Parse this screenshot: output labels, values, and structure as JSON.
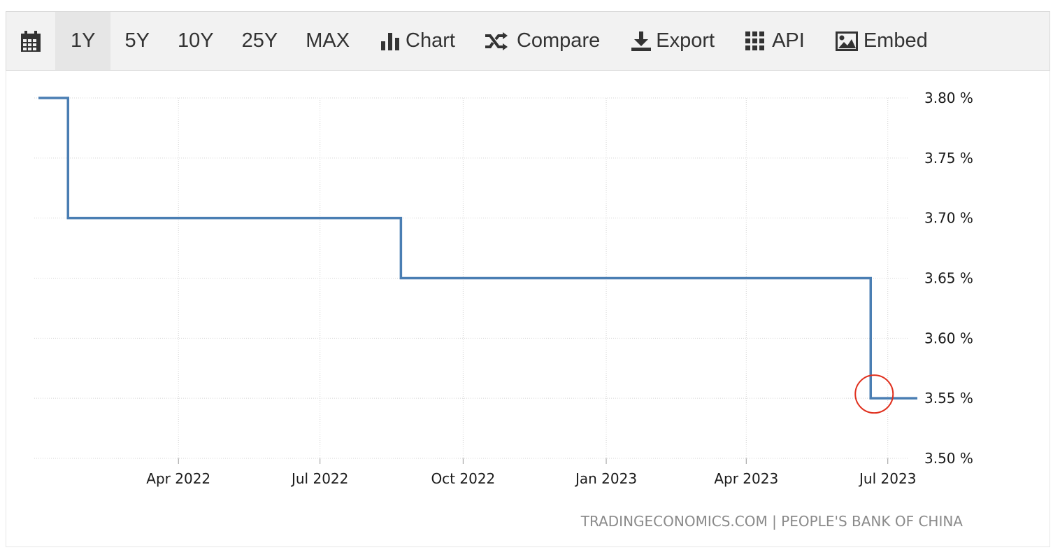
{
  "toolbar": {
    "calendar_icon": "calendar-icon",
    "periods": [
      "1Y",
      "5Y",
      "10Y",
      "25Y",
      "MAX"
    ],
    "active_period": "1Y",
    "chart_label": "Chart",
    "compare_label": "Compare",
    "export_label": "Export",
    "api_label": "API",
    "embed_label": "Embed"
  },
  "colors": {
    "line": "#4a7eb3",
    "marker": "#e0301e",
    "grid": "#d5d5d5",
    "toolbar_bg": "#f2f2f2"
  },
  "chart_data": {
    "type": "line",
    "step": true,
    "x": [
      "2022-01-01",
      "2022-01-20",
      "2022-08-22",
      "2023-06-20",
      "2023-07-20"
    ],
    "series": [
      {
        "values": [
          3.8,
          3.7,
          3.65,
          3.55,
          3.55
        ]
      }
    ],
    "x_tick_labels": [
      "Apr 2022",
      "Jul 2022",
      "Oct 2022",
      "Jan 2023",
      "Apr 2023",
      "Jul 2023"
    ],
    "x_ticks": [
      "2022-04-01",
      "2022-07-01",
      "2022-10-01",
      "2023-01-01",
      "2023-04-01",
      "2023-07-01"
    ],
    "xlim": [
      "2022-01-01",
      "2023-07-20"
    ],
    "y_tick_labels": [
      "3.80 %",
      "3.75 %",
      "3.70 %",
      "3.65 %",
      "3.60 %",
      "3.55 %",
      "3.50 %"
    ],
    "y_ticks": [
      3.8,
      3.75,
      3.7,
      3.65,
      3.6,
      3.55,
      3.5
    ],
    "ylim": [
      3.5,
      3.8
    ],
    "y_axis_position": "right",
    "grid": true,
    "highlight_point": {
      "x": "2023-06-20",
      "y": 3.55
    },
    "source": "TRADINGECONOMICS.COM | PEOPLE'S BANK OF CHINA"
  }
}
